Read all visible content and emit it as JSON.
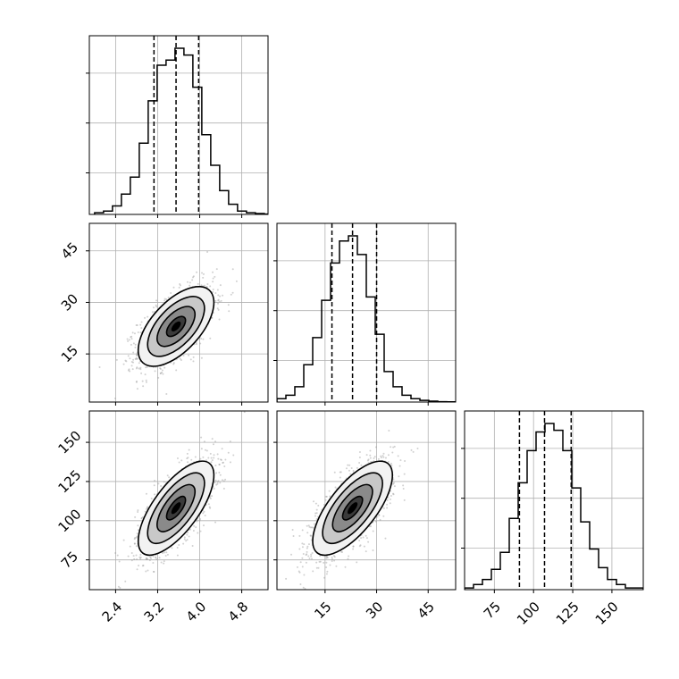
{
  "chart_data": {
    "type": "corner",
    "parameters": [
      {
        "ticks": [
          2.4,
          3.2,
          4.0,
          4.8
        ],
        "tick_labels": [
          "2.4",
          "3.2",
          "4.0",
          "4.8"
        ],
        "range": [
          1.9,
          5.3
        ],
        "quantiles": [
          3.13,
          3.55,
          3.98
        ],
        "histogram": {
          "bin_start": 2.0,
          "bin_width": 0.17,
          "counts": [
            0.01,
            0.02,
            0.05,
            0.12,
            0.22,
            0.42,
            0.67,
            0.88,
            0.91,
            0.98,
            0.94,
            0.75,
            0.47,
            0.29,
            0.14,
            0.06,
            0.02,
            0.01,
            0.005,
            0.002
          ]
        }
      },
      {
        "ticks": [
          15,
          30,
          45
        ],
        "tick_labels": [
          "15",
          "30",
          "45"
        ],
        "range": [
          1,
          53
        ],
        "quantiles": [
          17.0,
          23.0,
          30.0
        ],
        "histogram": {
          "bin_start": 1.0,
          "bin_width": 2.6,
          "counts": [
            0.02,
            0.04,
            0.09,
            0.22,
            0.38,
            0.6,
            0.82,
            0.95,
            0.98,
            0.87,
            0.62,
            0.4,
            0.18,
            0.09,
            0.04,
            0.02,
            0.01,
            0.005,
            0.002,
            0.001
          ]
        }
      },
      {
        "ticks": [
          75,
          100,
          125,
          150
        ],
        "tick_labels": [
          "75",
          "100",
          "125",
          "150"
        ],
        "range": [
          56,
          170
        ],
        "quantiles": [
          91.0,
          107.0,
          124.0
        ],
        "histogram": {
          "bin_start": 56.0,
          "bin_width": 5.7,
          "counts": [
            0.01,
            0.03,
            0.06,
            0.12,
            0.22,
            0.42,
            0.63,
            0.82,
            0.93,
            0.98,
            0.94,
            0.82,
            0.6,
            0.4,
            0.24,
            0.13,
            0.06,
            0.03,
            0.01,
            0.01
          ]
        }
      }
    ],
    "pairs": [
      {
        "x_param": 0,
        "y_param": 1,
        "mean": [
          3.55,
          23.0
        ],
        "sd": [
          0.36,
          5.8
        ],
        "corr": 0.6
      },
      {
        "x_param": 0,
        "y_param": 2,
        "mean": [
          3.55,
          108.0
        ],
        "sd": [
          0.36,
          15.0
        ],
        "corr": 0.7
      },
      {
        "x_param": 1,
        "y_param": 2,
        "mean": [
          23.0,
          108.0
        ],
        "sd": [
          5.8,
          15.0
        ],
        "corr": 0.7
      }
    ],
    "contour_levels_sigma": [
      0.5,
      1.0,
      1.5,
      2.0
    ],
    "grid": true
  }
}
